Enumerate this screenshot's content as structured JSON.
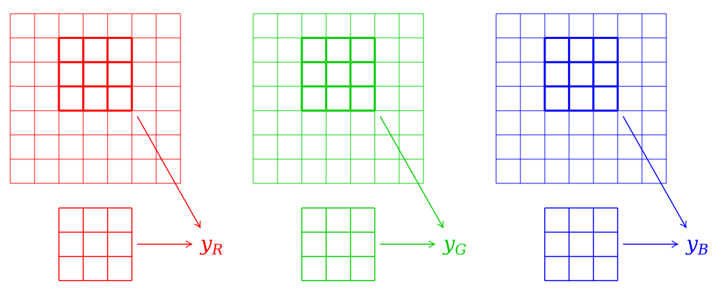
{
  "panels": [
    {
      "channel": "R",
      "color": "#ff0000",
      "output_var": "y",
      "output_sub": "R"
    },
    {
      "channel": "G",
      "color": "#00cc00",
      "output_var": "y",
      "output_sub": "G"
    },
    {
      "channel": "B",
      "color": "#0000ff",
      "output_var": "y",
      "output_sub": "B"
    }
  ],
  "input_grid_size": 7,
  "kernel_size": 3
}
